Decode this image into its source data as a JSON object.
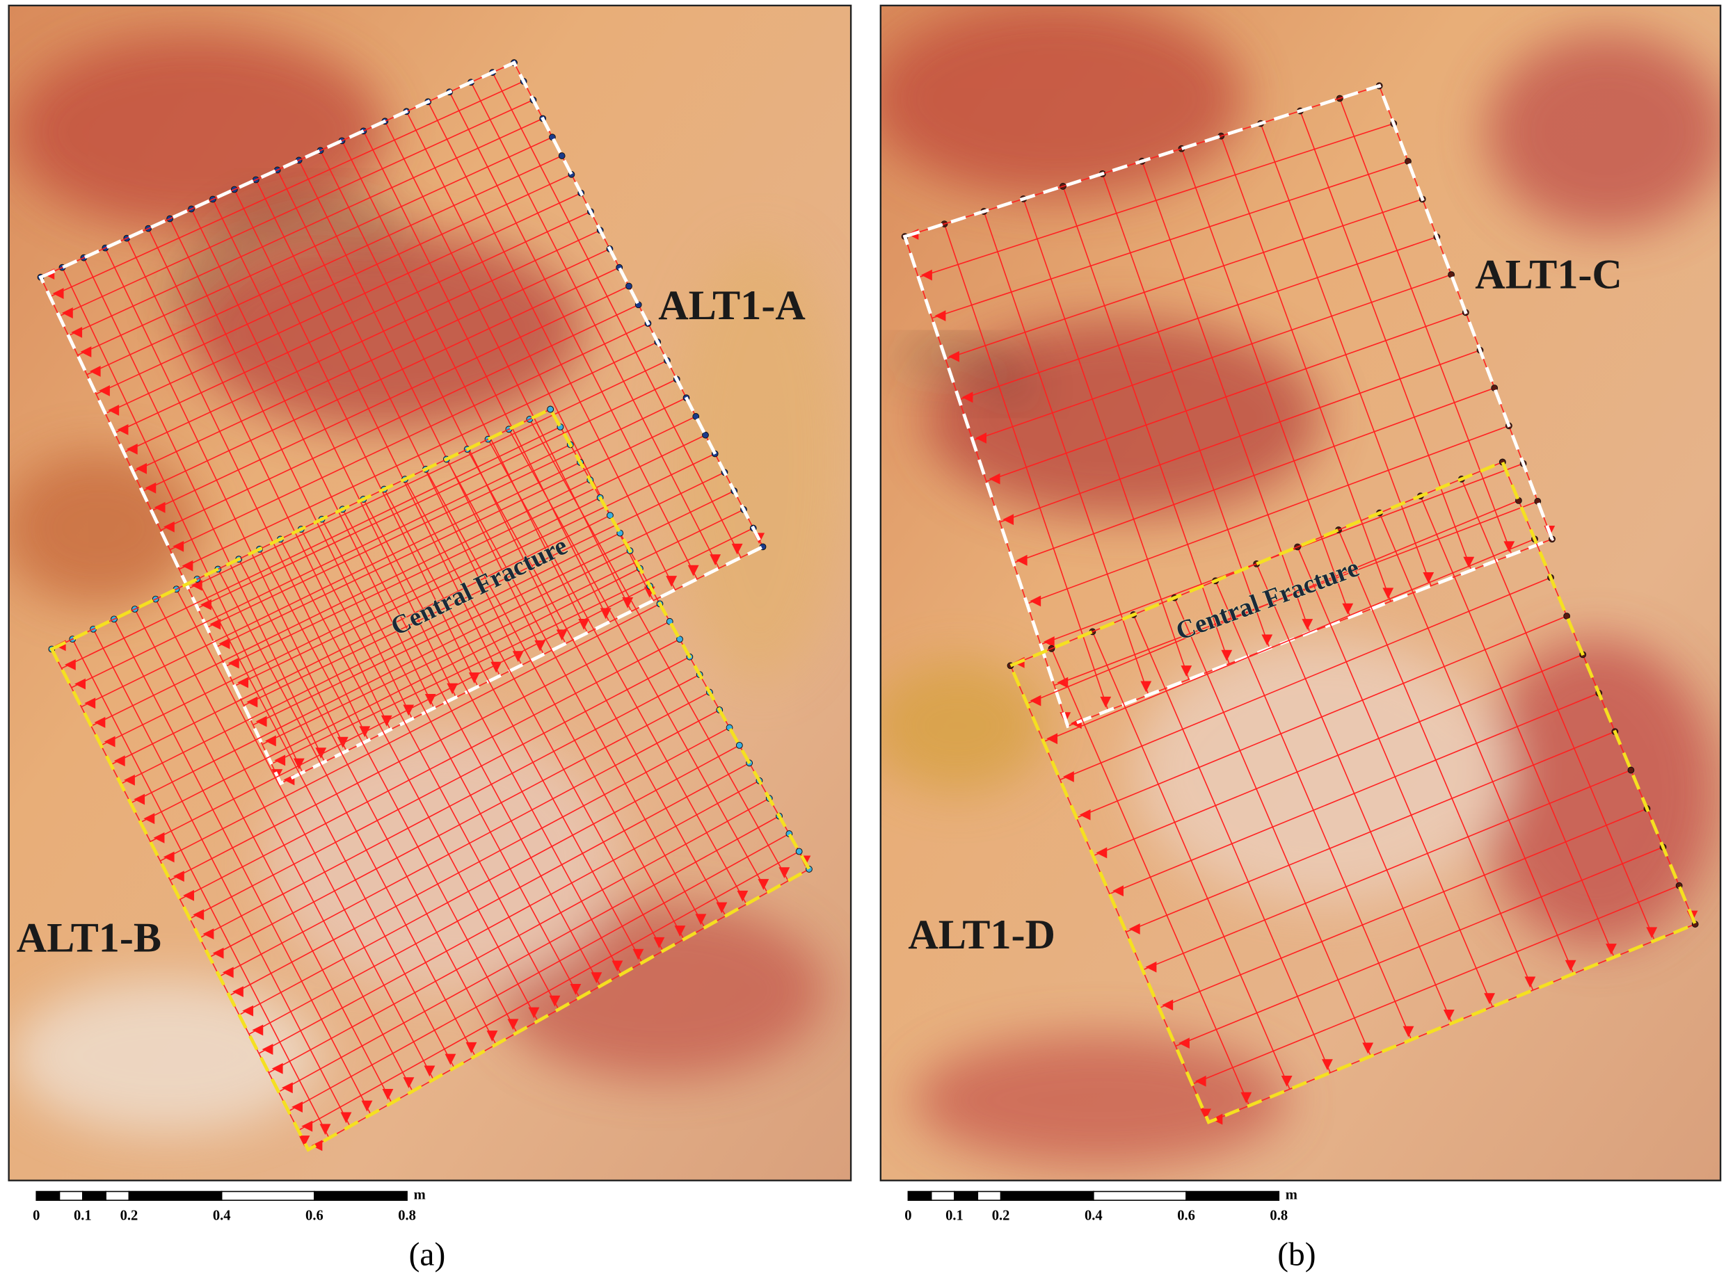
{
  "panels": [
    {
      "labels": [
        "ALT1-A",
        "ALT1-B"
      ],
      "fracture": "Central Fracture",
      "scale": {
        "ticks": [
          "0",
          "0.1",
          "0.2",
          "0.4",
          "0.6",
          "0.8"
        ],
        "unit": "m"
      },
      "caption": "(a)"
    },
    {
      "labels": [
        "ALT1-C",
        "ALT1-D"
      ],
      "fracture": "Central Fracture",
      "scale": {
        "ticks": [
          "0",
          "0.1",
          "0.2",
          "0.4",
          "0.6",
          "0.8"
        ],
        "unit": "m"
      },
      "caption": "(b)"
    }
  ]
}
